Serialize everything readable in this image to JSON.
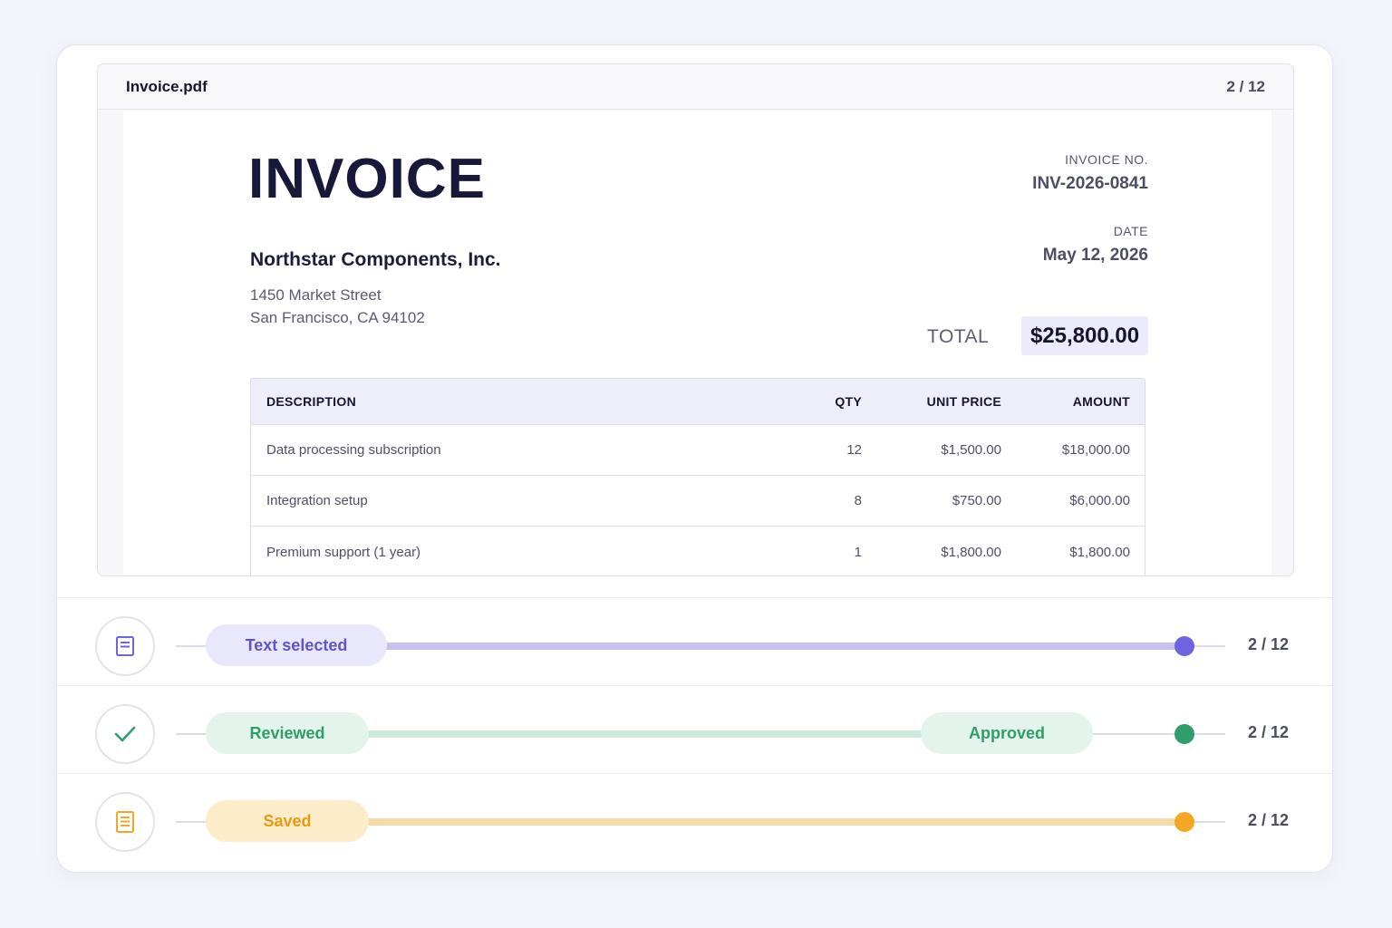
{
  "viewer": {
    "file_name": "Invoice.pdf",
    "page_counter": "2 / 12"
  },
  "invoice": {
    "title": "INVOICE",
    "company": "Northstar Components, Inc.",
    "address_line1": "1450 Market Street",
    "address_line2": "San Francisco, CA 94102",
    "invoice_no_label": "INVOICE NO.",
    "invoice_no": "INV-2026-0841",
    "date_label": "DATE",
    "date": "May 12, 2026",
    "total_label": "TOTAL",
    "total": "$25,800.00",
    "columns": [
      "DESCRIPTION",
      "QTY",
      "UNIT PRICE",
      "AMOUNT"
    ],
    "rows": [
      {
        "description": "Data processing subscription",
        "qty": "12",
        "unit_price": "$1,500.00",
        "amount": "$18,000.00"
      },
      {
        "description": "Integration setup",
        "qty": "8",
        "unit_price": "$750.00",
        "amount": "$6,000.00"
      },
      {
        "description": "Premium support (1 year)",
        "qty": "1",
        "unit_price": "$1,800.00",
        "amount": "$1,800.00"
      }
    ]
  },
  "status_rows": [
    {
      "icon": "document-icon",
      "label": "Text selected",
      "counter": "2 / 12",
      "color": "#6e63e0",
      "progress": 1.0
    },
    {
      "icon": "check-icon",
      "label": "Reviewed",
      "end_label": "Approved",
      "counter": "2 / 12",
      "color": "#2f9e6a",
      "progress": 1.0
    },
    {
      "icon": "notes-icon",
      "label": "Saved",
      "counter": "2 / 12",
      "color": "#f5a623",
      "progress": 1.0
    }
  ]
}
